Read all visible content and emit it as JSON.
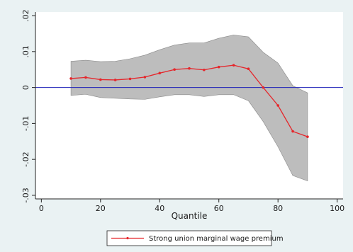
{
  "chart_data": {
    "type": "line",
    "xlabel": "Quantile",
    "ylabel": "",
    "xlim": [
      -2,
      102
    ],
    "ylim": [
      -0.031,
      0.021
    ],
    "x_ticks": [
      0,
      20,
      40,
      60,
      80,
      100
    ],
    "x_tick_labels": [
      "0",
      "20",
      "40",
      "60",
      "80",
      "100"
    ],
    "y_ticks": [
      0.02,
      0.01,
      0,
      -0.01,
      -0.02,
      -0.03
    ],
    "y_tick_labels": [
      ".02",
      ".01",
      "0",
      "-.01",
      "-.02",
      "-.03"
    ],
    "reference_line_y": 0,
    "legend_position": "bottom",
    "grid": false,
    "series": [
      {
        "name": "Strong union marginal wage premium",
        "x": [
          10,
          15,
          20,
          25,
          30,
          35,
          40,
          45,
          50,
          55,
          60,
          65,
          70,
          75,
          80,
          85,
          90
        ],
        "values": [
          0.0025,
          0.0028,
          0.0022,
          0.0021,
          0.0024,
          0.0029,
          0.004,
          0.005,
          0.0053,
          0.0049,
          0.0057,
          0.0062,
          0.0052,
          0.0,
          -0.005,
          -0.0122,
          -0.0137
        ],
        "lower": [
          -0.0022,
          -0.0019,
          -0.0028,
          -0.003,
          -0.0032,
          -0.0033,
          -0.0026,
          -0.002,
          -0.002,
          -0.0025,
          -0.002,
          -0.002,
          -0.0037,
          -0.0095,
          -0.0165,
          -0.0245,
          -0.026
        ],
        "upper": [
          0.0073,
          0.0076,
          0.0072,
          0.0073,
          0.008,
          0.009,
          0.0105,
          0.0118,
          0.0124,
          0.0124,
          0.0137,
          0.0146,
          0.0141,
          0.0098,
          0.0068,
          0.0005,
          -0.0015
        ],
        "color": "#e5262b",
        "band_color": "#bdbdbd"
      }
    ],
    "colors": {
      "background": "#eaf2f3",
      "plot_area": "#ffffff",
      "reference_line": "#1f22b8"
    }
  }
}
